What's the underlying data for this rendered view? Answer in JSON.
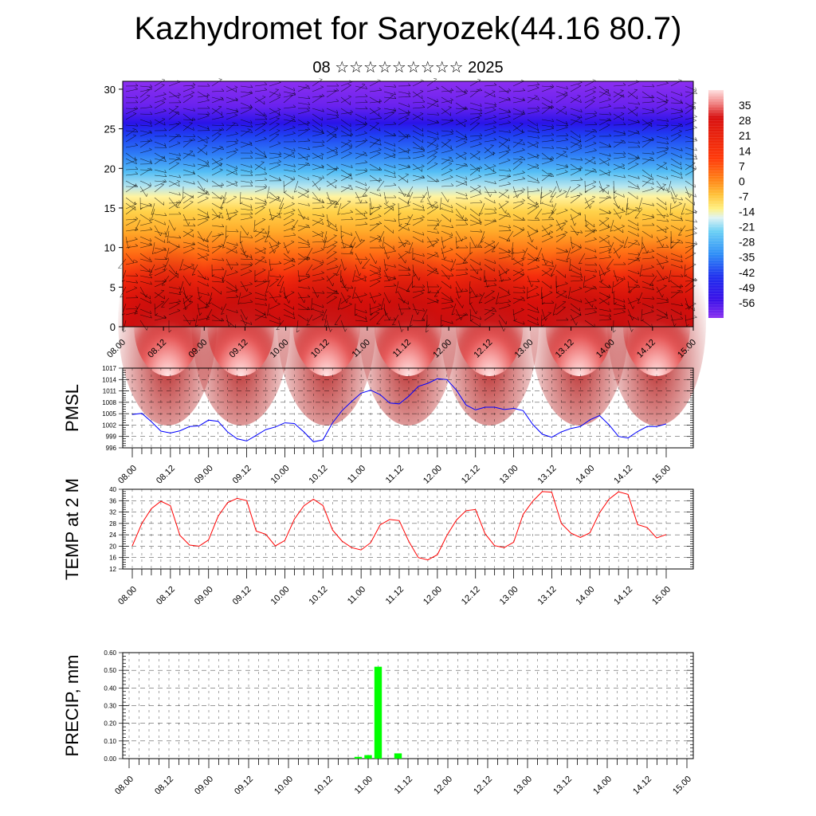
{
  "header": {
    "title": "Kazhydromet for Saryozek(44.16 80.7)",
    "subtitle": "08 ☆☆☆☆☆☆☆☆☆ 2025"
  },
  "colors": {
    "pmsl_line": "#0000ff",
    "temp_line": "#ff0000",
    "precip_bar": "#00ff00"
  },
  "chart_data": [
    {
      "id": "cross-section",
      "type": "heatmap",
      "title": "",
      "xlabel": "",
      "ylabel": "",
      "x_ticks": [
        "08.00",
        "08.12",
        "09.00",
        "09.12",
        "10.00",
        "10.12",
        "11.00",
        "11.12",
        "12.00",
        "12.12",
        "13.00",
        "13.12",
        "14.00",
        "14.12",
        "15.00"
      ],
      "y_ticks": [
        "0",
        "5",
        "10",
        "15",
        "20",
        "25",
        "30"
      ],
      "ylim": [
        0,
        31
      ],
      "colorbar_labels": [
        "35",
        "28",
        "21",
        "14",
        "7",
        "0",
        "-7",
        "-14",
        "-21",
        "-28",
        "-35",
        "-42",
        "-49",
        "-56"
      ],
      "colorbar_range": [
        -63,
        42
      ],
      "warm_cores_x": [
        0.55,
        1.45,
        2.5,
        3.5,
        4.5,
        5.6,
        6.55
      ]
    },
    {
      "id": "pmsl",
      "type": "line",
      "ylabel": "PMSL",
      "ylim": [
        996,
        1017
      ],
      "y_ticks": [
        "996",
        "999",
        "1002",
        "1005",
        "1008",
        "1011",
        "1014",
        "1017"
      ],
      "x_ticks": [
        "08.00",
        "08.12",
        "09.00",
        "09.12",
        "10.00",
        "10.12",
        "11.00",
        "11.12",
        "12.00",
        "12.12",
        "13.00",
        "13.12",
        "14.00",
        "14.12",
        "15.00"
      ],
      "series": [
        {
          "x": [
            0,
            0.125,
            0.25,
            0.375,
            0.5,
            0.625,
            0.75,
            0.875,
            1,
            1.125,
            1.25,
            1.375,
            1.5,
            1.625,
            1.75,
            1.875,
            2,
            2.125,
            2.25,
            2.375,
            2.5,
            2.625,
            2.75,
            2.875,
            3,
            3.125,
            3.25,
            3.375,
            3.5,
            3.625,
            3.75,
            3.875,
            4,
            4.125,
            4.25,
            4.375,
            4.5,
            4.625,
            4.75,
            4.875,
            5,
            5.125,
            5.25,
            5.375,
            5.5,
            5.625,
            5.75,
            5.875,
            6,
            6.125,
            6.25,
            6.375,
            6.5,
            6.625,
            6.75,
            6.875,
            7
          ],
          "values": [
            1004.8,
            1005.1,
            1002.9,
            1000.4,
            999.9,
            1000.5,
            1001.6,
            1001.8,
            1003.3,
            1003.0,
            1000.2,
            998.4,
            997.8,
            999.3,
            1000.8,
            1001.5,
            1002.6,
            1002.4,
            1000.2,
            997.6,
            998.1,
            1002.6,
            1005.8,
            1008.2,
            1010.4,
            1011.2,
            1010.0,
            1007.8,
            1007.6,
            1009.6,
            1012.2,
            1013.0,
            1014.2,
            1014.0,
            1011.2,
            1007.3,
            1006.0,
            1006.7,
            1006.7,
            1006.1,
            1006.4,
            1005.8,
            1002.2,
            999.6,
            998.8,
            1000.2,
            1001.1,
            1001.6,
            1003.4,
            1004.5,
            1002.1,
            999.0,
            998.6,
            1000.3,
            1001.6,
            1001.6,
            1002.3
          ]
        }
      ]
    },
    {
      "id": "temp2m",
      "type": "line",
      "ylabel": "TEMP at 2 M",
      "ylim": [
        12,
        40
      ],
      "y_ticks": [
        "12",
        "16",
        "20",
        "24",
        "28",
        "32",
        "36",
        "40"
      ],
      "x_ticks": [
        "08.00",
        "08.12",
        "09.00",
        "09.12",
        "10.00",
        "10.12",
        "11.00",
        "11.12",
        "12.00",
        "12.12",
        "13.00",
        "13.12",
        "14.00",
        "14.12",
        "15.00"
      ],
      "series": [
        {
          "x": [
            0,
            0.125,
            0.25,
            0.375,
            0.5,
            0.625,
            0.75,
            0.875,
            1,
            1.125,
            1.25,
            1.375,
            1.5,
            1.625,
            1.75,
            1.875,
            2,
            2.125,
            2.25,
            2.375,
            2.5,
            2.625,
            2.75,
            2.875,
            3,
            3.125,
            3.25,
            3.375,
            3.5,
            3.625,
            3.75,
            3.875,
            4,
            4.125,
            4.25,
            4.375,
            4.5,
            4.625,
            4.75,
            4.875,
            5,
            5.125,
            5.25,
            5.375,
            5.5,
            5.625,
            5.75,
            5.875,
            6,
            6.125,
            6.25,
            6.375,
            6.5,
            6.625,
            6.75,
            6.875,
            7
          ],
          "values": [
            20.1,
            28.0,
            33.2,
            35.8,
            34.2,
            23.8,
            20.4,
            20.0,
            22.2,
            30.5,
            35.3,
            36.8,
            36.0,
            25.3,
            24.2,
            20.1,
            22.0,
            29.5,
            34.2,
            36.5,
            34.3,
            25.7,
            21.8,
            19.5,
            18.7,
            21.2,
            27.5,
            29.4,
            29.0,
            21.7,
            16.0,
            15.2,
            17.0,
            23.8,
            29.2,
            32.5,
            32.9,
            24.4,
            20.2,
            19.5,
            21.4,
            31.2,
            35.8,
            39.2,
            39.0,
            28.0,
            24.6,
            23.1,
            24.7,
            31.7,
            36.5,
            39.1,
            38.2,
            27.6,
            26.6,
            22.9,
            24.1
          ]
        }
      ]
    },
    {
      "id": "precip",
      "type": "bar",
      "ylabel": "PRECIP, mm",
      "ylim": [
        0,
        0.6
      ],
      "y_ticks": [
        "0.00",
        "0.10",
        "0.20",
        "0.30",
        "0.40",
        "0.50",
        "0.60"
      ],
      "x_ticks": [
        "08.00",
        "08.12",
        "09.00",
        "09.12",
        "10.00",
        "10.12",
        "11.00",
        "11.12",
        "12.00",
        "12.12",
        "13.00",
        "13.12",
        "14.00",
        "14.12",
        "15.00"
      ],
      "series": [
        {
          "x": [
            2.875,
            3.0,
            3.125,
            3.375
          ],
          "values": [
            0.01,
            0.02,
            0.52,
            0.03
          ]
        }
      ]
    }
  ]
}
